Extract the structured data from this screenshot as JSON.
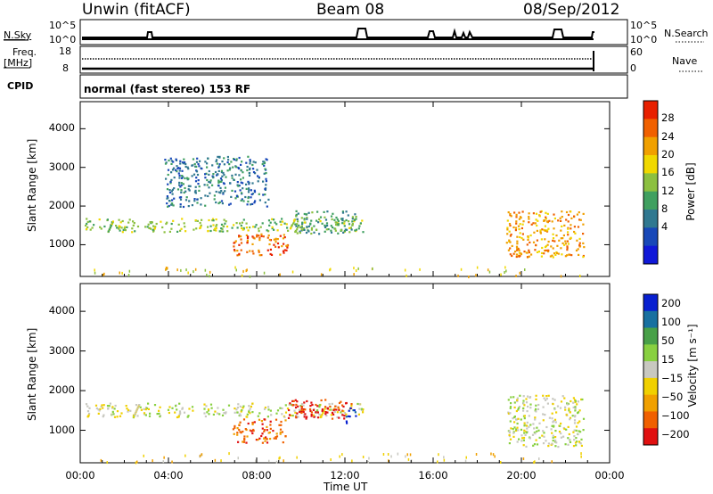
{
  "header": {
    "station": "Unwin (fitACF)",
    "beam": "Beam 08",
    "date": "08/Sep/2012"
  },
  "strips": {
    "nsky_label": "N.Sky",
    "nsky_ticks": [
      "10^5",
      "10^0"
    ],
    "nsearch_label": "N.Search",
    "nsearch_ticks": [
      "10^5",
      "10^0"
    ],
    "freq_label": "Freq.",
    "freq_unit": "[MHz]",
    "freq_ticks": [
      "18",
      "8"
    ],
    "nave_label": "Nave",
    "nave_ticks": [
      "60",
      "0"
    ],
    "cpid_label": "CPID",
    "cpid_text": "normal (fast stereo) 153 RF"
  },
  "colors": {
    "power_scale": [
      "#1018d8",
      "#1848b8",
      "#307890",
      "#40a060",
      "#8cc040",
      "#f0d800",
      "#f0a000",
      "#f06000",
      "#e82000"
    ],
    "velocity_scale": [
      "#0820d0",
      "#1870a0",
      "#48a048",
      "#88d040",
      "#c8c8c0",
      "#f0d000",
      "#f0a000",
      "#f06000",
      "#e01010"
    ]
  },
  "chart_data": [
    {
      "type": "heatmap",
      "name": "power",
      "ylabel": "Slant Range [km]",
      "xlabel": "",
      "x_ticks": [
        "00:00",
        "04:00",
        "08:00",
        "12:00",
        "16:00",
        "20:00",
        "00:00"
      ],
      "y_ticks": [
        1000,
        2000,
        3000,
        4000
      ],
      "xlim_hours": [
        0,
        24
      ],
      "ylim_km": [
        180,
        4700
      ],
      "colorbar_label": "Power [dB]",
      "colorbar_ticks": [
        "28",
        "24",
        "20",
        "16",
        "12",
        "8",
        "4"
      ],
      "regions": [
        {
          "t0": 0.2,
          "t1": 12.8,
          "r0": 1350,
          "r1": 1700,
          "level": 4
        },
        {
          "t0": 6.9,
          "t1": 9.4,
          "r0": 750,
          "r1": 1300,
          "level": 7
        },
        {
          "t0": 9.7,
          "t1": 12.5,
          "r0": 1300,
          "r1": 1900,
          "level": 3
        },
        {
          "t0": 19.3,
          "t1": 22.8,
          "r0": 700,
          "r1": 1900,
          "level": 6
        },
        {
          "t0": 3.8,
          "t1": 8.5,
          "r0": 2000,
          "r1": 3300,
          "level": 2
        }
      ]
    },
    {
      "type": "heatmap",
      "name": "velocity",
      "ylabel": "Slant Range [km]",
      "xlabel": "Time UT",
      "x_ticks": [
        "00:00",
        "04:00",
        "08:00",
        "12:00",
        "16:00",
        "20:00",
        "00:00"
      ],
      "y_ticks": [
        1000,
        2000,
        3000,
        4000
      ],
      "xlim_hours": [
        0,
        24
      ],
      "ylim_km": [
        180,
        4700
      ],
      "colorbar_label": "Velocity [m s⁻¹]",
      "colorbar_ticks": [
        "200",
        "100",
        "50",
        "15",
        "−15",
        "−50",
        "−100",
        "−200"
      ],
      "regions": [
        {
          "t0": 0.2,
          "t1": 12.8,
          "r0": 1350,
          "r1": 1700,
          "level": 4
        },
        {
          "t0": 6.9,
          "t1": 9.4,
          "r0": 700,
          "r1": 1300,
          "level": 7
        },
        {
          "t0": 9.4,
          "t1": 12.3,
          "r0": 1300,
          "r1": 1800,
          "level": 8
        },
        {
          "t0": 12.0,
          "t1": 12.5,
          "r0": 1200,
          "r1": 1600,
          "level": 0
        },
        {
          "t0": 19.3,
          "t1": 22.8,
          "r0": 600,
          "r1": 1900,
          "level": 4
        }
      ]
    }
  ]
}
